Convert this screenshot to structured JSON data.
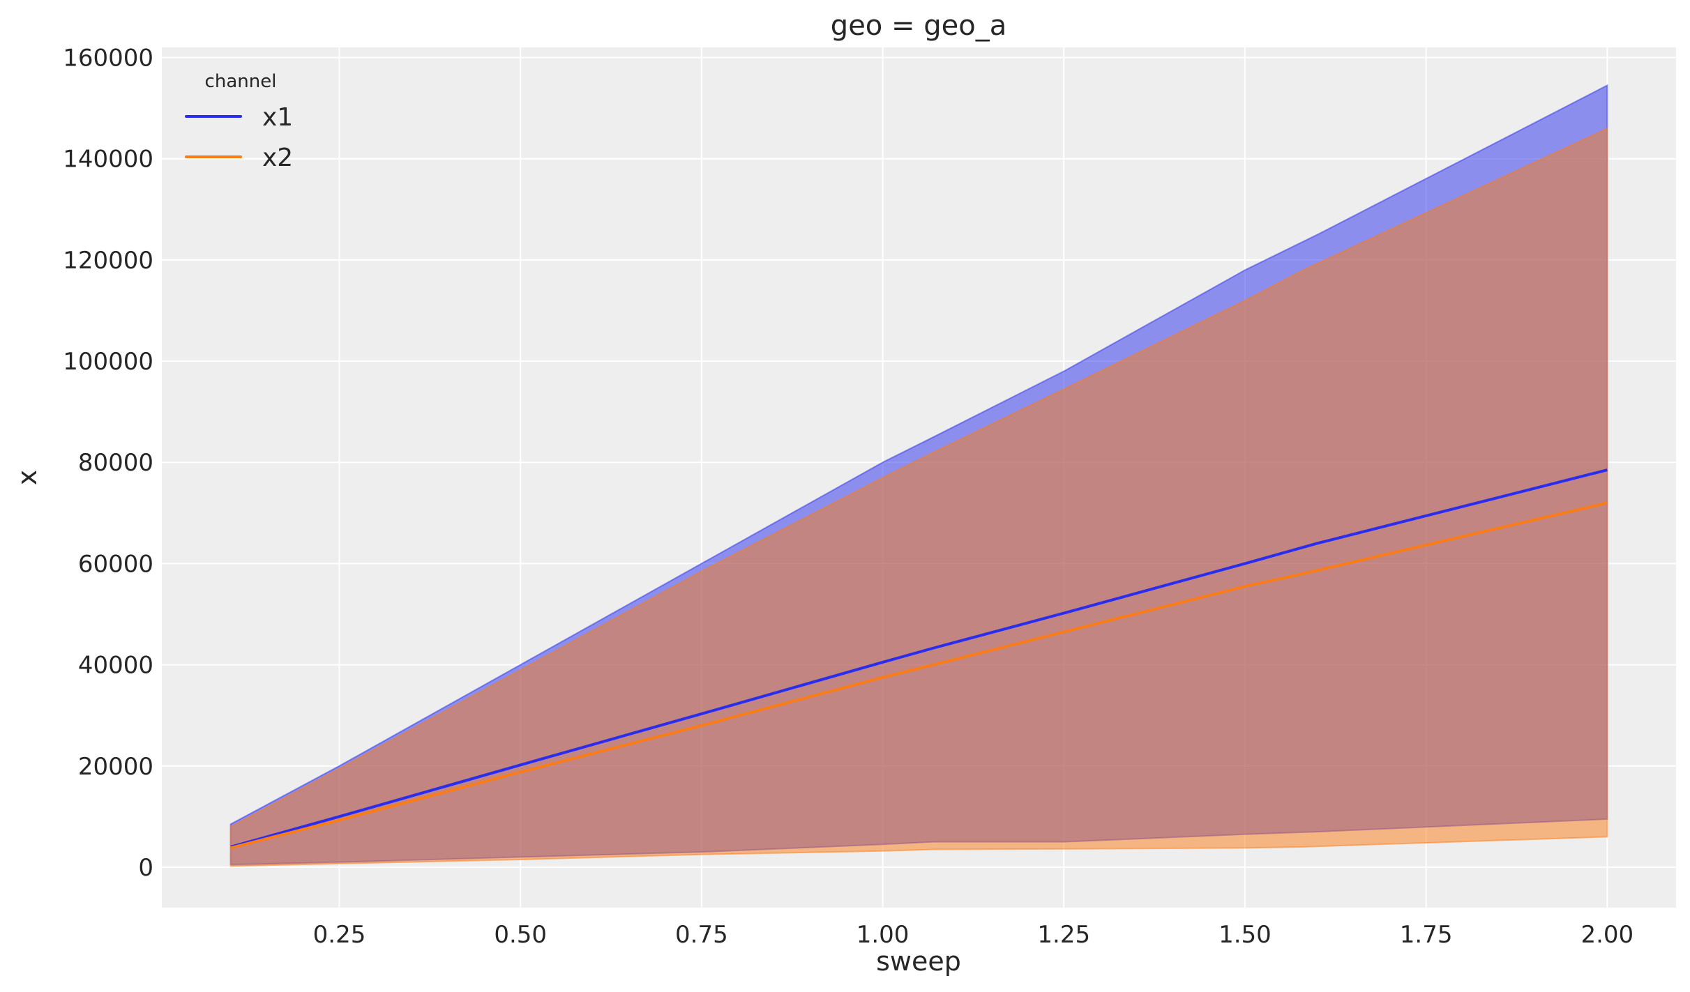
{
  "chart_data": {
    "type": "area",
    "title": "geo = geo_a",
    "xlabel": "sweep",
    "ylabel": "x",
    "xlim": [
      0.005,
      2.095
    ],
    "ylim": [
      -8000,
      162000
    ],
    "xticks": [
      0.25,
      0.5,
      0.75,
      1.0,
      1.25,
      1.5,
      1.75,
      2.0
    ],
    "xtick_labels": [
      "0.25",
      "0.50",
      "0.75",
      "1.00",
      "1.25",
      "1.50",
      "1.75",
      "2.00"
    ],
    "yticks": [
      0,
      20000,
      40000,
      60000,
      80000,
      100000,
      120000,
      140000,
      160000
    ],
    "ytick_labels": [
      "0",
      "20000",
      "40000",
      "60000",
      "80000",
      "100000",
      "120000",
      "140000",
      "160000"
    ],
    "grid": true,
    "legend": {
      "title": "channel",
      "placement": "top-left"
    },
    "series": [
      {
        "name": "x1",
        "color": "#2a2eec",
        "x": [
          0.1,
          0.25,
          0.5,
          0.75,
          1.0,
          1.07,
          1.25,
          1.5,
          1.6,
          2.0
        ],
        "mean": [
          4000,
          10000,
          20200,
          30300,
          40500,
          43300,
          50200,
          60000,
          64000,
          78500
        ],
        "upper": [
          8500,
          20000,
          40000,
          60000,
          80000,
          85000,
          98000,
          118000,
          125000,
          154500
        ],
        "lower": [
          500,
          1000,
          2000,
          3000,
          4500,
          5000,
          5000,
          6500,
          7000,
          9500
        ]
      },
      {
        "name": "x2",
        "color": "#fa7c17",
        "x": [
          0.1,
          0.25,
          0.5,
          0.75,
          1.0,
          1.07,
          1.25,
          1.5,
          1.58,
          2.0
        ],
        "mean": [
          3800,
          9300,
          18800,
          28000,
          37500,
          40000,
          46500,
          55500,
          58000,
          72000
        ],
        "upper": [
          8000,
          19500,
          39000,
          58500,
          77000,
          82000,
          94500,
          112000,
          118000,
          146000
        ],
        "lower": [
          200,
          700,
          1500,
          2500,
          3200,
          3500,
          3600,
          3800,
          4000,
          6000
        ]
      }
    ]
  }
}
